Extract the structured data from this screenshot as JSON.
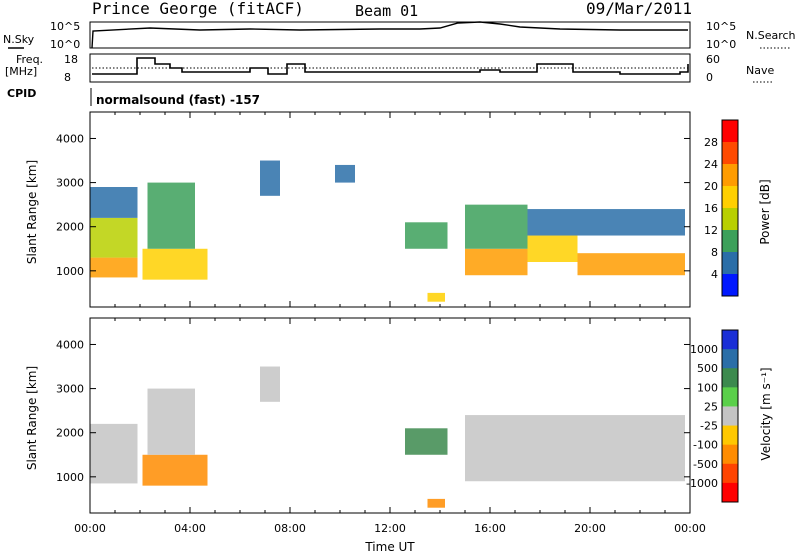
{
  "header": {
    "station": "Prince George (fitACF)",
    "beam": "Beam 01",
    "date": "09/Mar/2011"
  },
  "top_panels": {
    "nsky_label": "N.Sky",
    "nsearch_label": "N.Search",
    "freq_label_1": "Freq.",
    "freq_label_2": "[MHz]",
    "nave_label": "Nave",
    "cpid_label": "CPID",
    "cpid_text": "normalsound (fast) -157",
    "noise_ticks_left": [
      "10^5",
      "10^0"
    ],
    "noise_ticks_right": [
      "10^5",
      "10^0"
    ],
    "freq_ticks": [
      "18",
      "8"
    ],
    "nave_ticks": [
      "60",
      "0"
    ]
  },
  "colorbars": {
    "power": {
      "label": "Power [dB]",
      "ticks": [
        "28",
        "24",
        "20",
        "16",
        "12",
        "8",
        "4"
      ],
      "colors": [
        "#ff0000",
        "#ff4a00",
        "#ff9c00",
        "#ffd000",
        "#b8d000",
        "#3ca05a",
        "#2a6ea8",
        "#0018ff"
      ]
    },
    "velocity": {
      "label": "Velocity [m s⁻¹]",
      "ticks": [
        "1000",
        "500",
        "100",
        "25",
        "-25",
        "-100",
        "-500",
        "-1000"
      ],
      "colors": [
        "#1a2fd6",
        "#2a6ea8",
        "#3c8a4e",
        "#5ad04a",
        "#c4c4c4",
        "#ffc800",
        "#ff8c00",
        "#ff4400",
        "#ff0000"
      ]
    }
  },
  "chart_data": [
    {
      "type": "heatmap",
      "title": "",
      "quantity": "Power",
      "xlabel": "",
      "ylabel": "Slant Range [km]",
      "xlim": [
        0,
        24
      ],
      "ylim": [
        180,
        4600
      ],
      "yticks": [
        "1000",
        "2000",
        "3000",
        "4000"
      ],
      "regions": [
        {
          "t0": 0.0,
          "t1": 1.9,
          "r0": 850,
          "r1": 1300,
          "level": 24
        },
        {
          "t0": 0.0,
          "t1": 1.9,
          "r0": 1300,
          "r1": 2200,
          "level": 18
        },
        {
          "t0": 0.0,
          "t1": 1.9,
          "r0": 2200,
          "r1": 2900,
          "level": 10
        },
        {
          "t0": 2.1,
          "t1": 4.7,
          "r0": 800,
          "r1": 1500,
          "level": 22
        },
        {
          "t0": 2.3,
          "t1": 4.2,
          "r0": 1500,
          "r1": 3000,
          "level": 14
        },
        {
          "t0": 6.8,
          "t1": 7.6,
          "r0": 2700,
          "r1": 3500,
          "level": 8
        },
        {
          "t0": 9.8,
          "t1": 10.6,
          "r0": 3000,
          "r1": 3400,
          "level": 8
        },
        {
          "t0": 12.6,
          "t1": 14.3,
          "r0": 1500,
          "r1": 2100,
          "level": 14
        },
        {
          "t0": 13.5,
          "t1": 14.2,
          "r0": 300,
          "r1": 500,
          "level": 22
        },
        {
          "t0": 15.0,
          "t1": 17.5,
          "r0": 900,
          "r1": 1500,
          "level": 24
        },
        {
          "t0": 15.0,
          "t1": 17.5,
          "r0": 1500,
          "r1": 2500,
          "level": 12
        },
        {
          "t0": 17.5,
          "t1": 19.5,
          "r0": 1200,
          "r1": 1800,
          "level": 22
        },
        {
          "t0": 19.5,
          "t1": 23.8,
          "r0": 900,
          "r1": 1400,
          "level": 24
        },
        {
          "t0": 17.5,
          "t1": 23.8,
          "r0": 1800,
          "r1": 2400,
          "level": 10
        }
      ]
    },
    {
      "type": "heatmap",
      "title": "",
      "quantity": "Velocity",
      "xlabel": "Time UT",
      "ylabel": "Slant Range [km]",
      "xlim": [
        0,
        24
      ],
      "ylim": [
        180,
        4600
      ],
      "xticks": [
        "00:00",
        "04:00",
        "08:00",
        "12:00",
        "16:00",
        "20:00",
        "00:00"
      ],
      "yticks": [
        "1000",
        "2000",
        "3000",
        "4000"
      ],
      "regions": [
        {
          "t0": 0.0,
          "t1": 1.9,
          "r0": 850,
          "r1": 2200,
          "level": 0
        },
        {
          "t0": 2.1,
          "t1": 4.7,
          "r0": 800,
          "r1": 1500,
          "level": -150
        },
        {
          "t0": 2.3,
          "t1": 4.2,
          "r0": 1500,
          "r1": 3000,
          "level": 0
        },
        {
          "t0": 6.8,
          "t1": 7.6,
          "r0": 2700,
          "r1": 3500,
          "level": 0
        },
        {
          "t0": 12.6,
          "t1": 14.3,
          "r0": 1500,
          "r1": 2100,
          "level": 300
        },
        {
          "t0": 13.5,
          "t1": 14.2,
          "r0": 300,
          "r1": 500,
          "level": -150
        },
        {
          "t0": 15.0,
          "t1": 23.8,
          "r0": 900,
          "r1": 2400,
          "level": 0
        }
      ]
    }
  ]
}
